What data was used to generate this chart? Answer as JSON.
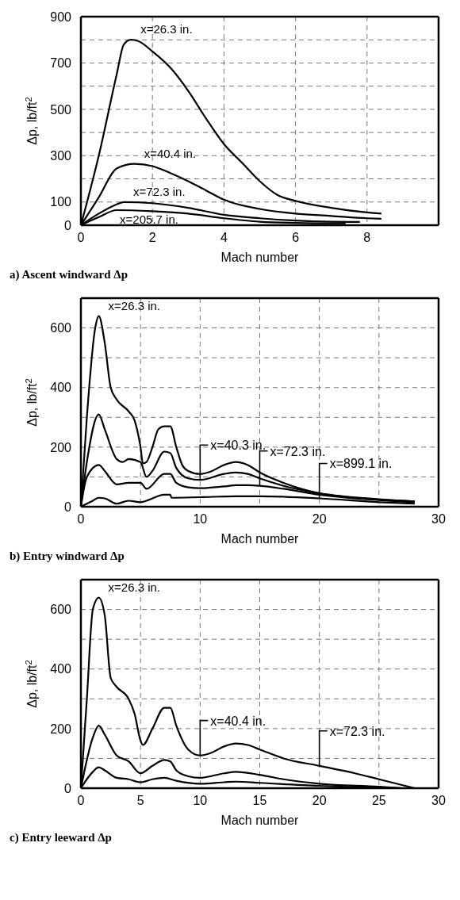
{
  "chart_data": [
    {
      "type": "line",
      "title": "a) Ascent windward Δp",
      "xlabel": "Mach number",
      "ylabel": "Δp, lb/ft$^{2}$",
      "xlim": [
        0,
        10
      ],
      "xticks": [
        0,
        2,
        4,
        6,
        8
      ],
      "ylim": [
        0,
        900
      ],
      "yticks": [
        0,
        100,
        {
          "value": 200,
          "label": null
        },
        300,
        {
          "value": 400,
          "label": null
        },
        500,
        {
          "value": 600,
          "label": null
        },
        700,
        {
          "value": 800,
          "label": null
        },
        900
      ],
      "grid": true,
      "line_style": "solid",
      "marker": "none",
      "series": [
        {
          "color": "#000000",
          "x": [
            0,
            0.5,
            1,
            1.2,
            1.4,
            1.6,
            2,
            2.5,
            3,
            3.5,
            4,
            4.5,
            5,
            5.5,
            6,
            7,
            8,
            8.4
          ],
          "values": [
            0,
            300,
            650,
            780,
            800,
            795,
            750,
            680,
            580,
            460,
            350,
            270,
            190,
            130,
            105,
            75,
            55,
            50
          ]
        },
        {
          "color": "#000000",
          "x": [
            0,
            0.5,
            1,
            1.5,
            2,
            2.5,
            3,
            3.5,
            4,
            5,
            6,
            7,
            8,
            8.4
          ],
          "values": [
            0,
            120,
            245,
            265,
            255,
            225,
            190,
            150,
            110,
            70,
            50,
            40,
            30,
            28
          ]
        },
        {
          "color": "#000000",
          "x": [
            0,
            0.5,
            1,
            1.2,
            2,
            3,
            4,
            5,
            6,
            7,
            7.8
          ],
          "values": [
            0,
            50,
            90,
            100,
            95,
            75,
            45,
            30,
            20,
            15,
            14
          ]
        },
        {
          "color": "#000000",
          "x": [
            0,
            0.5,
            1,
            2,
            3,
            4,
            5,
            6,
            7,
            7.4
          ],
          "values": [
            0,
            35,
            65,
            60,
            50,
            30,
            15,
            10,
            8,
            8
          ]
        }
      ],
      "annotations": [
        "x=26.3 in.",
        "x=40.4 in.",
        "x=72.3 in.",
        "x=205.7 in."
      ]
    },
    {
      "type": "line",
      "title": "b) Entry windward Δp",
      "xlabel": "Mach number",
      "ylabel": "Δp, lb/ft$^{2}$",
      "xlim": [
        0,
        30
      ],
      "xticks": [
        0,
        {
          "value": 5,
          "label": null
        },
        10,
        {
          "value": 15,
          "label": null
        },
        20,
        {
          "value": 25,
          "label": null
        },
        30
      ],
      "ylim": [
        0,
        700
      ],
      "yticks": [
        0,
        {
          "value": 100,
          "label": null
        },
        200,
        {
          "value": 300,
          "label": null
        },
        400,
        {
          "value": 500,
          "label": null
        },
        600,
        {
          "value": 700,
          "label": null
        }
      ],
      "grid": true,
      "line_style": "solid",
      "marker": "none",
      "series": [
        {
          "color": "#000000",
          "x": [
            0,
            0.5,
            1.2,
            1.5,
            2,
            2.5,
            3,
            4,
            4.5,
            5,
            5.2,
            5.5,
            6,
            6.5,
            7,
            7.5,
            8,
            8.5,
            9,
            10,
            11,
            12,
            13,
            14,
            15,
            17,
            20,
            23,
            26,
            28
          ],
          "values": [
            0,
            300,
            600,
            640,
            550,
            400,
            360,
            320,
            290,
            200,
            145,
            150,
            200,
            260,
            270,
            270,
            200,
            140,
            120,
            110,
            120,
            140,
            150,
            140,
            115,
            80,
            45,
            30,
            22,
            18
          ]
        },
        {
          "color": "#000000",
          "x": [
            0,
            0.5,
            1.5,
            2,
            3,
            3.5,
            4,
            5,
            5.5,
            6,
            7,
            7.5,
            8,
            9,
            10,
            12,
            13,
            14,
            15,
            17,
            20,
            25,
            28
          ],
          "values": [
            0,
            150,
            310,
            260,
            160,
            150,
            160,
            150,
            100,
            120,
            185,
            180,
            130,
            95,
            90,
            110,
            115,
            110,
            95,
            70,
            45,
            25,
            18
          ]
        },
        {
          "color": "#000000",
          "x": [
            0,
            0.5,
            1.5,
            2,
            3,
            4,
            5,
            5.5,
            7,
            7.5,
            8,
            9,
            10,
            12,
            13,
            14,
            15,
            17,
            20,
            25,
            28
          ],
          "values": [
            0,
            100,
            140,
            120,
            75,
            80,
            80,
            60,
            110,
            110,
            80,
            65,
            62,
            68,
            72,
            72,
            70,
            60,
            40,
            22,
            15
          ]
        },
        {
          "color": "#000000",
          "x": [
            0,
            1,
            1.5,
            2,
            3,
            4,
            5,
            5.5,
            7,
            7.5,
            7.6,
            10,
            13,
            15,
            20,
            25,
            28
          ],
          "values": [
            0,
            20,
            30,
            28,
            10,
            20,
            15,
            20,
            40,
            40,
            30,
            32,
            35,
            35,
            28,
            15,
            10
          ]
        }
      ],
      "annotations": [
        "x=26.3 in.",
        {
          "text": "x=40.3 in.",
          "x": 10,
          "y": 90
        },
        {
          "text": "x=72.3 in.",
          "x": 15,
          "y": 70
        },
        {
          "text": "x=899.1 in.",
          "x": 20,
          "y": 28
        }
      ]
    },
    {
      "type": "line",
      "title": "c) Entry leeward Δp",
      "xlabel": "Mach number",
      "ylabel": "Δp, lb/ft$^{2}$",
      "xlim": [
        0,
        30
      ],
      "xticks": [
        0,
        5,
        10,
        15,
        20,
        25,
        30
      ],
      "ylim": [
        0,
        700
      ],
      "yticks": [
        0,
        {
          "value": 100,
          "label": null
        },
        200,
        {
          "value": 300,
          "label": null
        },
        400,
        {
          "value": 500,
          "label": null
        },
        600,
        {
          "value": 700,
          "label": null
        }
      ],
      "grid": true,
      "line_style": "solid",
      "marker": "none",
      "series": [
        {
          "color": "#000000",
          "x": [
            0,
            0.5,
            1,
            1.5,
            2,
            2.5,
            3,
            4,
            4.5,
            5,
            5.2,
            6,
            7,
            7.5,
            8,
            9,
            10,
            11,
            12,
            13,
            14,
            15,
            17,
            20,
            23,
            25,
            27,
            28
          ],
          "values": [
            0,
            300,
            600,
            640,
            580,
            370,
            340,
            300,
            250,
            160,
            145,
            200,
            270,
            270,
            210,
            130,
            110,
            120,
            140,
            150,
            145,
            130,
            100,
            75,
            50,
            30,
            10,
            0
          ]
        },
        {
          "color": "#000000",
          "x": [
            0,
            1,
            1.5,
            2,
            3,
            4,
            5,
            6,
            7,
            7.5,
            8,
            9,
            10,
            12,
            13,
            15,
            17,
            20,
            25,
            27
          ],
          "values": [
            0,
            170,
            210,
            180,
            110,
            90,
            50,
            75,
            95,
            90,
            60,
            40,
            35,
            50,
            55,
            45,
            30,
            15,
            5,
            0
          ]
        },
        {
          "color": "#000000",
          "x": [
            0,
            1,
            1.5,
            2,
            3,
            4,
            5,
            6,
            7,
            8,
            10,
            12,
            13,
            15,
            20,
            25,
            27
          ],
          "values": [
            0,
            55,
            70,
            60,
            35,
            30,
            20,
            30,
            35,
            25,
            15,
            20,
            22,
            18,
            8,
            2,
            0
          ]
        }
      ],
      "annotations": [
        "x=26.3 in.",
        {
          "text": "x=40.4 in.",
          "x": 10,
          "y": 110
        },
        {
          "text": "x=72.3 in.",
          "x": 20,
          "y": 75
        }
      ]
    }
  ]
}
